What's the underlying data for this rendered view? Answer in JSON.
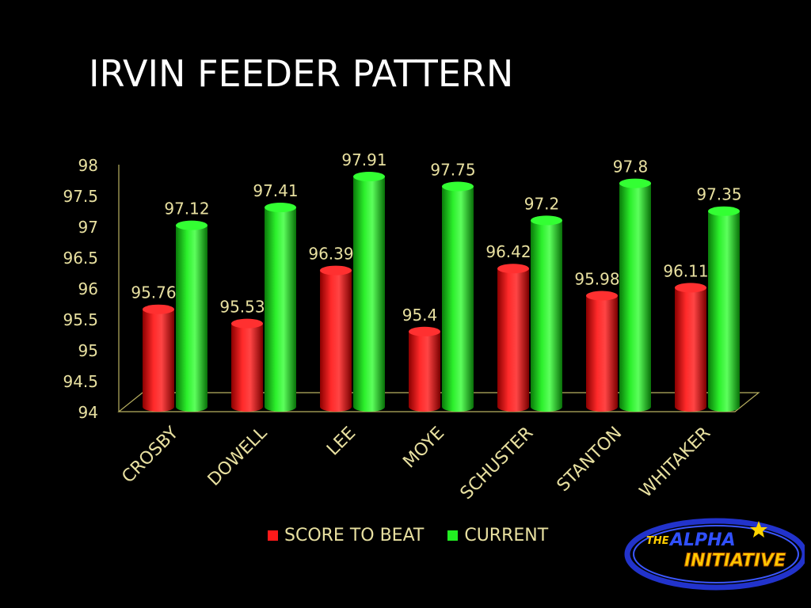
{
  "slide": {
    "title": "IRVIN FEEDER PATTERN"
  },
  "colors": {
    "background": "#000000",
    "label_text": "#e8e0a0",
    "series_red": "#ff1a1a",
    "series_green": "#22ee22",
    "axis_line": "#b8b060"
  },
  "chart_data": {
    "type": "bar",
    "title": "",
    "xlabel": "",
    "ylabel": "",
    "categories": [
      "CROSBY",
      "DOWELL",
      "LEE",
      "MOYE",
      "SCHUSTER",
      "STANTON",
      "WHITAKER"
    ],
    "series": [
      {
        "name": "SCORE TO BEAT",
        "color": "#ff1a1a",
        "values": [
          95.76,
          95.53,
          96.39,
          95.4,
          96.42,
          95.98,
          96.11
        ]
      },
      {
        "name": "CURRENT",
        "color": "#22ee22",
        "values": [
          97.12,
          97.41,
          97.91,
          97.75,
          97.2,
          97.8,
          97.35
        ]
      }
    ],
    "data_labels": [
      [
        "95.76",
        "95.53",
        "96.39",
        "95.4",
        "96.42",
        "95.98",
        "96.11"
      ],
      [
        "97.12",
        "97.41",
        "97.91",
        "97.75",
        "97.2",
        "97.8",
        "97.35"
      ]
    ],
    "ylim": [
      94,
      98
    ],
    "y_ticks": [
      "94",
      "94.5",
      "95",
      "95.5",
      "96",
      "96.5",
      "97",
      "97.5",
      "98"
    ],
    "grid": false,
    "legend_position": "bottom"
  },
  "logo": {
    "line1_prefix": "THE",
    "line1_main": "ALPHA",
    "line2": "INITIATIVE"
  }
}
